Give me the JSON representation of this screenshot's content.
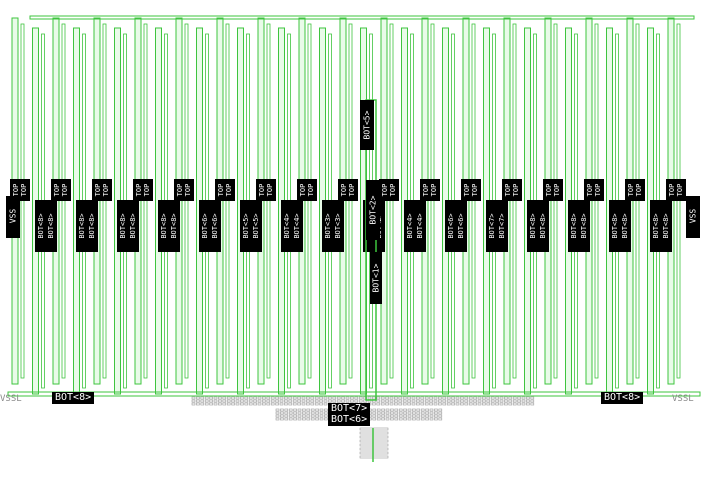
{
  "colors": {
    "background": "#ffffff",
    "metal_green": "#3ec43e",
    "finger_fill": "#e9fbe9",
    "via_gray": "#9a9a9a",
    "label_bg": "#000000",
    "label_fg": "#ffffff"
  },
  "finger_count": 33,
  "labels": {
    "bottom_left": "BOT<8>",
    "bottom_right": "BOT<8>",
    "center_bottom_1": "BOT<7>",
    "center_bottom_2": "BOT<6>",
    "edge_left": "VSSL",
    "edge_right": "VSSL",
    "top_center": "BOT<5>",
    "center_vertical": "BOT<2>",
    "center_vertical_low": "BOT<1>",
    "side_left": "VSS",
    "side_right": "VSS"
  },
  "finger_labels": {
    "upper": [
      "TOP",
      "TOP",
      "TOP",
      "TOP",
      "TOP",
      "TOP",
      "TOP",
      "TOP",
      "TOP",
      "TOP",
      "TOP",
      "TOP",
      "TOP",
      "TOP",
      "TOP",
      "TOP",
      "TOP"
    ],
    "lower_pairs": [
      [
        "BOT<8>",
        "BOT<8>"
      ],
      [
        "BOT<8>",
        "BOT<8>"
      ],
      [
        "BOT<8>",
        "BOT<8>"
      ],
      [
        "BOT<8>",
        "BOT<8>"
      ],
      [
        "BOT<6>",
        "BOT<6>"
      ],
      [
        "BOT<5>",
        "BOT<5>"
      ],
      [
        "BOT<4>",
        "BOT<4>"
      ],
      [
        "BOT<3>",
        "BOT<3>"
      ],
      [
        "BOT<2>",
        "BOT<2>"
      ],
      [
        "BOT<4>",
        "BOT<4>"
      ],
      [
        "BOT<6>",
        "BOT<6>"
      ],
      [
        "BOT<7>",
        "BOT<7>"
      ],
      [
        "BOT<8>",
        "BOT<8>"
      ],
      [
        "BOT<8>",
        "BOT<8>"
      ],
      [
        "BOT<8>",
        "BOT<8>"
      ],
      [
        "BOT<8>",
        "BOT<8>"
      ]
    ]
  }
}
